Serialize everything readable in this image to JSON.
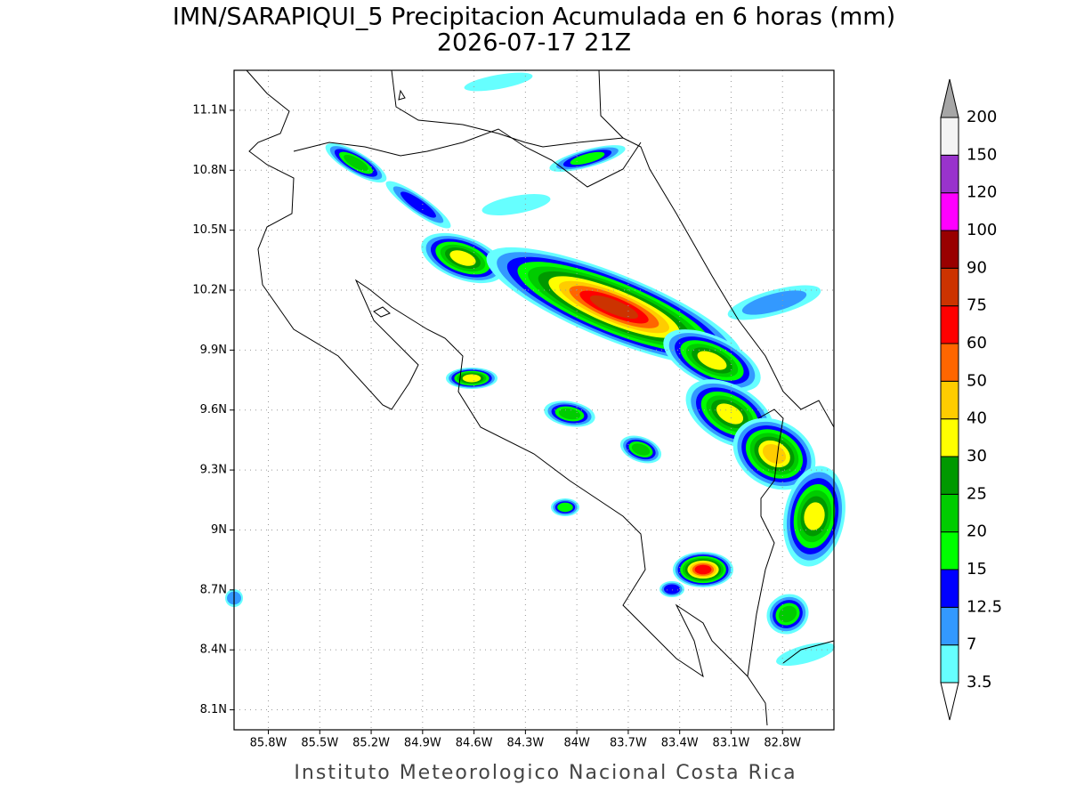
{
  "header": {
    "title": "IMN/SARAPIQUI_5 Precipitacion Acumulada en 6 horas (mm)",
    "subtitle": "2026-07-17 21Z"
  },
  "map": {
    "lat_range": [
      8.0,
      11.3
    ],
    "lon_range": [
      -86.0,
      -82.5
    ],
    "grid": true,
    "lat_ticks": [
      {
        "value": 11.1,
        "label": "11.1N"
      },
      {
        "value": 10.8,
        "label": "10.8N"
      },
      {
        "value": 10.5,
        "label": "10.5N"
      },
      {
        "value": 10.2,
        "label": "10.2N"
      },
      {
        "value": 9.9,
        "label": "9.9N"
      },
      {
        "value": 9.6,
        "label": "9.6N"
      },
      {
        "value": 9.3,
        "label": "9.3N"
      },
      {
        "value": 9.0,
        "label": "9N"
      },
      {
        "value": 8.7,
        "label": "8.7N"
      },
      {
        "value": 8.4,
        "label": "8.4N"
      },
      {
        "value": 8.1,
        "label": "8.1N"
      }
    ],
    "lon_ticks": [
      {
        "value": -85.8,
        "label": "85.8W"
      },
      {
        "value": -85.5,
        "label": "85.5W"
      },
      {
        "value": -85.2,
        "label": "85.2W"
      },
      {
        "value": -84.9,
        "label": "84.9W"
      },
      {
        "value": -84.6,
        "label": "84.6W"
      },
      {
        "value": -84.3,
        "label": "84.3W"
      },
      {
        "value": -84.0,
        "label": "84W"
      },
      {
        "value": -83.7,
        "label": "83.7W"
      },
      {
        "value": -83.4,
        "label": "83.4W"
      },
      {
        "value": -83.1,
        "label": "83.1W"
      },
      {
        "value": -82.8,
        "label": "82.8W"
      }
    ]
  },
  "colorbar": {
    "levels": [
      3.5,
      7,
      {
        "value": 12.5,
        "label": "12.5"
      },
      15,
      20,
      25,
      30,
      40,
      50,
      60,
      75,
      90,
      100,
      120,
      150,
      200
    ],
    "colors": [
      "#66ffff",
      "#3399ff",
      "#0000ff",
      "#00ff00",
      "#00cc00",
      "#009900",
      "#ffff00",
      "#ffcc00",
      "#ff6600",
      "#ff0000",
      "#cc3300",
      "#990000",
      "#ff00ff",
      "#9933cc",
      "#f4f4f4"
    ],
    "under_color": "#ffffff",
    "over_color": "#a6a6a6"
  },
  "footer": {
    "text": "Instituto Meteorologico Nacional Costa Rica"
  }
}
